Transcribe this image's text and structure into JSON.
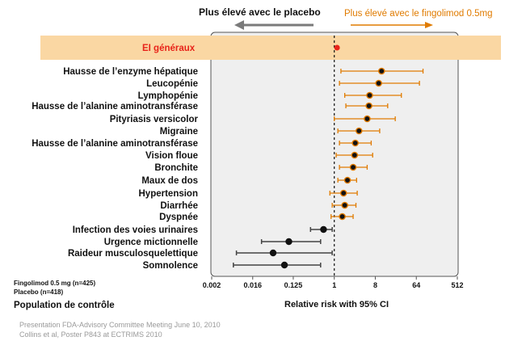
{
  "header": {
    "left_label": "Plus élevé avec le placebo",
    "right_label": "Plus élevé avec le fingolimod 0.5mg"
  },
  "chart_data": {
    "type": "forest",
    "xscale": "log2",
    "xlim": [
      0.002,
      512
    ],
    "xticks": [
      "0.002",
      "0.016",
      "0.125",
      "1",
      "8",
      "64",
      "512"
    ],
    "xlabel": "Relative risk with 95% CI",
    "reference_line": 1,
    "overall": {
      "label": "EI généraux",
      "value": 1.15,
      "low": 1.02,
      "high": 1.3
    },
    "rows": [
      {
        "label": "Hausse de l’enzyme hépatique",
        "value": 11,
        "low": 1.4,
        "high": 90
      },
      {
        "label": "Leucopénie",
        "value": 9.5,
        "low": 1.3,
        "high": 75
      },
      {
        "label": "Lymphopénie",
        "value": 6,
        "low": 1.7,
        "high": 30
      },
      {
        "label": "Hausse de l’alanine aminotransférase",
        "value": 5.8,
        "low": 1.8,
        "high": 15
      },
      {
        "label": "Pityriasis versicolor",
        "value": 5.3,
        "low": 1.0,
        "high": 22
      },
      {
        "label": "Migraine",
        "value": 3.5,
        "low": 1.2,
        "high": 10
      },
      {
        "label": "Hausse de l’alanine aminotransférase",
        "value": 2.9,
        "low": 1.3,
        "high": 6.5
      },
      {
        "label": "Vision floue",
        "value": 2.8,
        "low": 1.1,
        "high": 7
      },
      {
        "label": "Bronchite",
        "value": 2.6,
        "low": 1.3,
        "high": 5.3
      },
      {
        "label": "Maux de dos",
        "value": 1.95,
        "low": 1.2,
        "high": 3.1
      },
      {
        "label": "Hypertension",
        "value": 1.6,
        "low": 0.8,
        "high": 3.2
      },
      {
        "label": "Diarrhée",
        "value": 1.7,
        "low": 0.9,
        "high": 3.0
      },
      {
        "label": "Dyspnée",
        "value": 1.5,
        "low": 0.85,
        "high": 2.6
      },
      {
        "label": "Infection des voies urinaires",
        "value": 0.58,
        "low": 0.3,
        "high": 0.9
      },
      {
        "label": "Urgence mictionnelle",
        "value": 0.1,
        "low": 0.025,
        "high": 0.5
      },
      {
        "label": "Raideur musculosquelettique",
        "value": 0.045,
        "low": 0.007,
        "high": 0.9
      },
      {
        "label": "Somnolence",
        "value": 0.08,
        "low": 0.006,
        "high": 0.5
      }
    ],
    "colors": {
      "increase": "#e07b00",
      "decrease": "#444444",
      "overall": "#e8241a",
      "highlight_band": "#fad7a3",
      "panel": "#efefef",
      "arrow_left": "#7a7a7a",
      "arrow_right": "#e07b00"
    }
  },
  "legend": {
    "group1": "Fingolimod 0.5 mg (n=425)",
    "group2": "Placebo (n=418)",
    "population": "Population de contrôle"
  },
  "source": {
    "line1": "Presentation FDA-Advisory Committee Meeting June 10, 2010",
    "line2": "Collins et al, Poster P843 at ECTRIMS 2010"
  }
}
